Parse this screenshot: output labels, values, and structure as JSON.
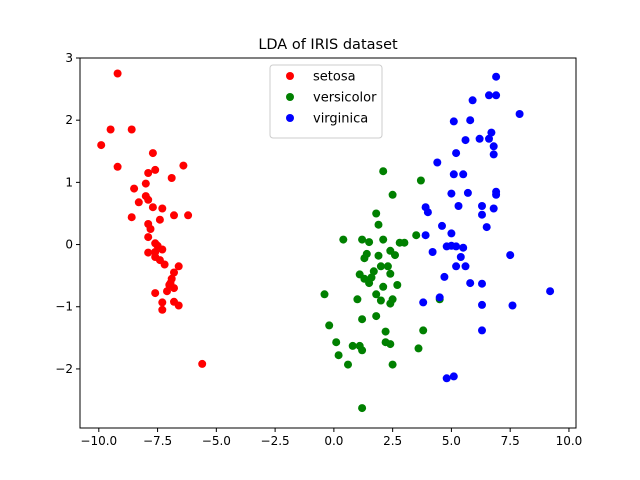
{
  "chart_data": {
    "type": "scatter",
    "title": "LDA of IRIS dataset",
    "xlabel": "",
    "ylabel": "",
    "xlim": [
      -10.8,
      10.3
    ],
    "ylim": [
      -2.95,
      3.0
    ],
    "xticks": [
      -10.0,
      -7.5,
      -5.0,
      -2.5,
      0.0,
      2.5,
      5.0,
      7.5,
      10.0
    ],
    "xtick_labels": [
      "−10.0",
      "−7.5",
      "−5.0",
      "−2.5",
      "0.0",
      "2.5",
      "5.0",
      "7.5",
      "10.0"
    ],
    "yticks": [
      -2,
      -1,
      0,
      1,
      2,
      3
    ],
    "ytick_labels": [
      "−2",
      "−1",
      "0",
      "1",
      "2",
      "3"
    ],
    "grid": false,
    "legend_position": "top-center",
    "series": [
      {
        "name": "setosa",
        "color": "#ff0000",
        "points": [
          [
            -9.2,
            2.75
          ],
          [
            -9.5,
            1.85
          ],
          [
            -8.6,
            1.85
          ],
          [
            -9.9,
            1.6
          ],
          [
            -9.2,
            1.25
          ],
          [
            -7.7,
            1.47
          ],
          [
            -8.5,
            0.9
          ],
          [
            -7.9,
            1.15
          ],
          [
            -7.6,
            1.2
          ],
          [
            -6.4,
            1.27
          ],
          [
            -8.0,
            0.98
          ],
          [
            -6.9,
            1.07
          ],
          [
            -8.3,
            0.68
          ],
          [
            -8.0,
            0.78
          ],
          [
            -7.9,
            0.72
          ],
          [
            -7.7,
            0.6
          ],
          [
            -7.3,
            0.58
          ],
          [
            -8.6,
            0.44
          ],
          [
            -7.9,
            0.33
          ],
          [
            -7.8,
            0.25
          ],
          [
            -7.4,
            0.4
          ],
          [
            -6.8,
            0.47
          ],
          [
            -6.2,
            0.47
          ],
          [
            -7.9,
            0.12
          ],
          [
            -7.6,
            0.02
          ],
          [
            -7.5,
            -0.02
          ],
          [
            -7.6,
            -0.12
          ],
          [
            -7.3,
            -0.08
          ],
          [
            -7.9,
            -0.13
          ],
          [
            -7.6,
            -0.2
          ],
          [
            -7.4,
            -0.25
          ],
          [
            -7.2,
            -0.32
          ],
          [
            -6.6,
            -0.35
          ],
          [
            -6.8,
            -0.45
          ],
          [
            -6.9,
            -0.55
          ],
          [
            -7.0,
            -0.65
          ],
          [
            -6.8,
            -0.7
          ],
          [
            -7.1,
            -0.75
          ],
          [
            -7.6,
            -0.78
          ],
          [
            -7.3,
            -0.93
          ],
          [
            -6.8,
            -0.92
          ],
          [
            -6.6,
            -0.98
          ],
          [
            -7.3,
            -1.05
          ],
          [
            -5.6,
            -1.92
          ],
          [
            -6.95,
            -0.62
          ]
        ]
      },
      {
        "name": "versicolor",
        "color": "#008000",
        "points": [
          [
            2.1,
            1.18
          ],
          [
            2.5,
            0.8
          ],
          [
            3.7,
            1.03
          ],
          [
            1.8,
            0.5
          ],
          [
            1.9,
            0.32
          ],
          [
            0.4,
            0.08
          ],
          [
            1.2,
            0.08
          ],
          [
            1.5,
            0.04
          ],
          [
            2.1,
            0.08
          ],
          [
            2.8,
            0.03
          ],
          [
            3.0,
            0.03
          ],
          [
            3.5,
            0.15
          ],
          [
            1.4,
            -0.15
          ],
          [
            1.3,
            -0.22
          ],
          [
            1.9,
            -0.18
          ],
          [
            2.4,
            -0.1
          ],
          [
            2.6,
            -0.17
          ],
          [
            2.0,
            -0.35
          ],
          [
            2.3,
            -0.35
          ],
          [
            1.7,
            -0.43
          ],
          [
            1.1,
            -0.48
          ],
          [
            1.3,
            -0.55
          ],
          [
            1.6,
            -0.53
          ],
          [
            2.4,
            -0.47
          ],
          [
            2.7,
            -0.65
          ],
          [
            1.5,
            -0.62
          ],
          [
            2.1,
            -0.68
          ],
          [
            1.8,
            -0.8
          ],
          [
            1.0,
            -0.88
          ],
          [
            2.0,
            -0.9
          ],
          [
            2.4,
            -0.95
          ],
          [
            2.5,
            -0.88
          ],
          [
            -0.4,
            -0.8
          ],
          [
            -0.2,
            -1.3
          ],
          [
            1.2,
            -1.2
          ],
          [
            1.8,
            -1.15
          ],
          [
            2.2,
            -1.4
          ],
          [
            3.8,
            -1.38
          ],
          [
            0.1,
            -1.57
          ],
          [
            0.8,
            -1.63
          ],
          [
            1.1,
            -1.63
          ],
          [
            1.2,
            -1.7
          ],
          [
            2.2,
            -1.57
          ],
          [
            2.4,
            -1.6
          ],
          [
            3.6,
            -1.67
          ],
          [
            0.2,
            -1.78
          ],
          [
            0.6,
            -1.93
          ],
          [
            2.5,
            -1.93
          ],
          [
            1.2,
            -2.63
          ],
          [
            4.5,
            -0.88
          ]
        ]
      },
      {
        "name": "virginica",
        "color": "#0000ff",
        "points": [
          [
            6.9,
            2.7
          ],
          [
            5.9,
            2.32
          ],
          [
            6.6,
            2.4
          ],
          [
            6.9,
            2.4
          ],
          [
            7.9,
            2.1
          ],
          [
            5.1,
            1.98
          ],
          [
            5.8,
            2.0
          ],
          [
            6.7,
            1.8
          ],
          [
            5.6,
            1.68
          ],
          [
            6.2,
            1.7
          ],
          [
            6.6,
            1.7
          ],
          [
            6.8,
            1.58
          ],
          [
            5.2,
            1.47
          ],
          [
            6.8,
            1.45
          ],
          [
            4.4,
            1.32
          ],
          [
            5.1,
            1.13
          ],
          [
            5.5,
            1.13
          ],
          [
            5.0,
            0.82
          ],
          [
            5.7,
            0.83
          ],
          [
            6.9,
            0.85
          ],
          [
            6.9,
            0.8
          ],
          [
            5.3,
            0.62
          ],
          [
            6.3,
            0.62
          ],
          [
            6.8,
            0.58
          ],
          [
            3.9,
            0.6
          ],
          [
            4.0,
            0.52
          ],
          [
            6.3,
            0.48
          ],
          [
            4.6,
            0.3
          ],
          [
            6.5,
            0.28
          ],
          [
            3.9,
            0.15
          ],
          [
            5.0,
            0.18
          ],
          [
            5.0,
            -0.02
          ],
          [
            5.2,
            -0.03
          ],
          [
            5.5,
            -0.05
          ],
          [
            4.8,
            -0.03
          ],
          [
            4.2,
            -0.12
          ],
          [
            5.4,
            -0.2
          ],
          [
            7.5,
            -0.17
          ],
          [
            5.2,
            -0.35
          ],
          [
            5.6,
            -0.35
          ],
          [
            4.7,
            -0.52
          ],
          [
            5.8,
            -0.62
          ],
          [
            6.3,
            -0.63
          ],
          [
            4.5,
            -0.85
          ],
          [
            3.8,
            -0.93
          ],
          [
            6.3,
            -0.97
          ],
          [
            7.6,
            -0.98
          ],
          [
            9.2,
            -0.75
          ],
          [
            6.3,
            -1.38
          ],
          [
            4.8,
            -2.15
          ],
          [
            5.1,
            -2.12
          ]
        ]
      }
    ]
  }
}
